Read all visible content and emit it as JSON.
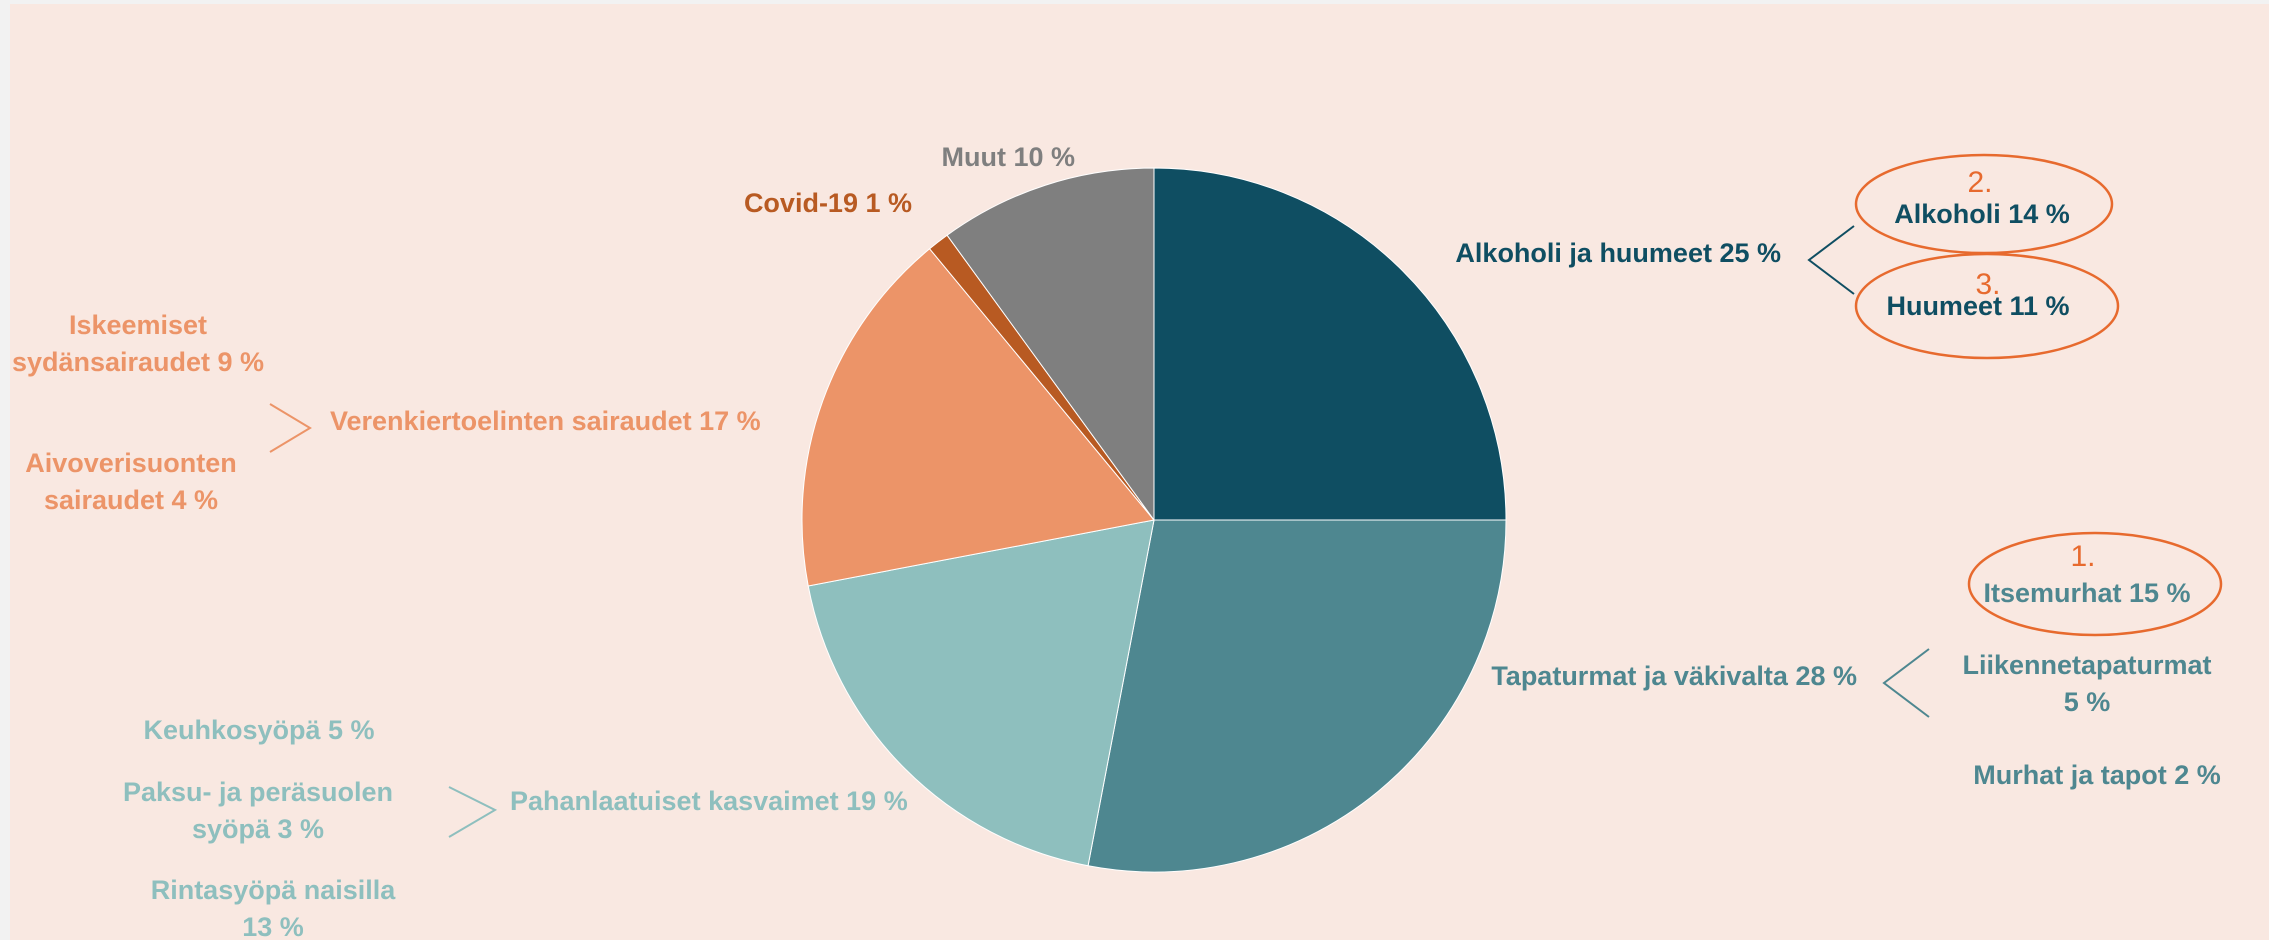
{
  "colors": {
    "background": "#f9e8e1",
    "dark_teal": "#0f4e62",
    "mid_teal": "#4e8790",
    "light_teal": "#8ebfbe",
    "orange": "#ec9468",
    "covid_brown": "#b85a22",
    "gray": "#7f7f7f",
    "highlight_orange": "#e76a2e"
  },
  "chart_data": {
    "type": "pie",
    "start_angle_deg": 0,
    "direction": "clockwise",
    "slices": [
      {
        "label": "Alkoholi ja huumeet 25 %",
        "value": 25,
        "color": "#0f4e62",
        "label_color": "#0f4e62"
      },
      {
        "label": "Tapaturmat ja väkivalta 28 %",
        "value": 28,
        "color": "#4e8790",
        "label_color": "#4e8790"
      },
      {
        "label": "Pahanlaatuiset kasvaimet 19 %",
        "value": 19,
        "color": "#8ebfbe",
        "label_color": "#8ebfbe"
      },
      {
        "label": "Verenkiertoelinten sairaudet 17 %",
        "value": 17,
        "color": "#ec9468",
        "label_color": "#ec9468"
      },
      {
        "label": "Covid-19 1 %",
        "value": 1,
        "color": "#b85a22",
        "label_color": "#b85a22"
      },
      {
        "label": "Muut 10 %",
        "value": 10,
        "color": "#7f7f7f",
        "label_color": "#7f7f7f"
      }
    ],
    "sub_breakdowns": [
      {
        "parent": "Alkoholi ja huumeet 25 %",
        "items": [
          {
            "lines": [
              "Alkoholi 14 %"
            ],
            "rank": "2."
          },
          {
            "lines": [
              "Huumeet 11 %"
            ],
            "rank": "3."
          }
        ]
      },
      {
        "parent": "Tapaturmat ja väkivalta 28 %",
        "items": [
          {
            "lines": [
              "Itsemurhat 15 %"
            ],
            "rank": "1."
          },
          {
            "lines": [
              "Liikennetapaturmat",
              "5 %"
            ]
          },
          {
            "lines": [
              "Murhat ja tapot 2 %"
            ]
          }
        ]
      },
      {
        "parent": "Pahanlaatuiset kasvaimet 19 %",
        "items": [
          {
            "lines": [
              "Keuhkosyöpä 5 %"
            ]
          },
          {
            "lines": [
              "Paksu- ja peräsuolen",
              "syöpä 3 %"
            ]
          },
          {
            "lines": [
              "Rintasyöpä naisilla",
              "13 %"
            ]
          }
        ]
      },
      {
        "parent": "Verenkiertoelinten sairaudet 17 %",
        "items": [
          {
            "lines": [
              "Iskeemiset",
              "sydänsairaudet 9 %"
            ]
          },
          {
            "lines": [
              "Aivoverisuonten",
              "sairaudet 4 %"
            ]
          }
        ]
      }
    ]
  }
}
